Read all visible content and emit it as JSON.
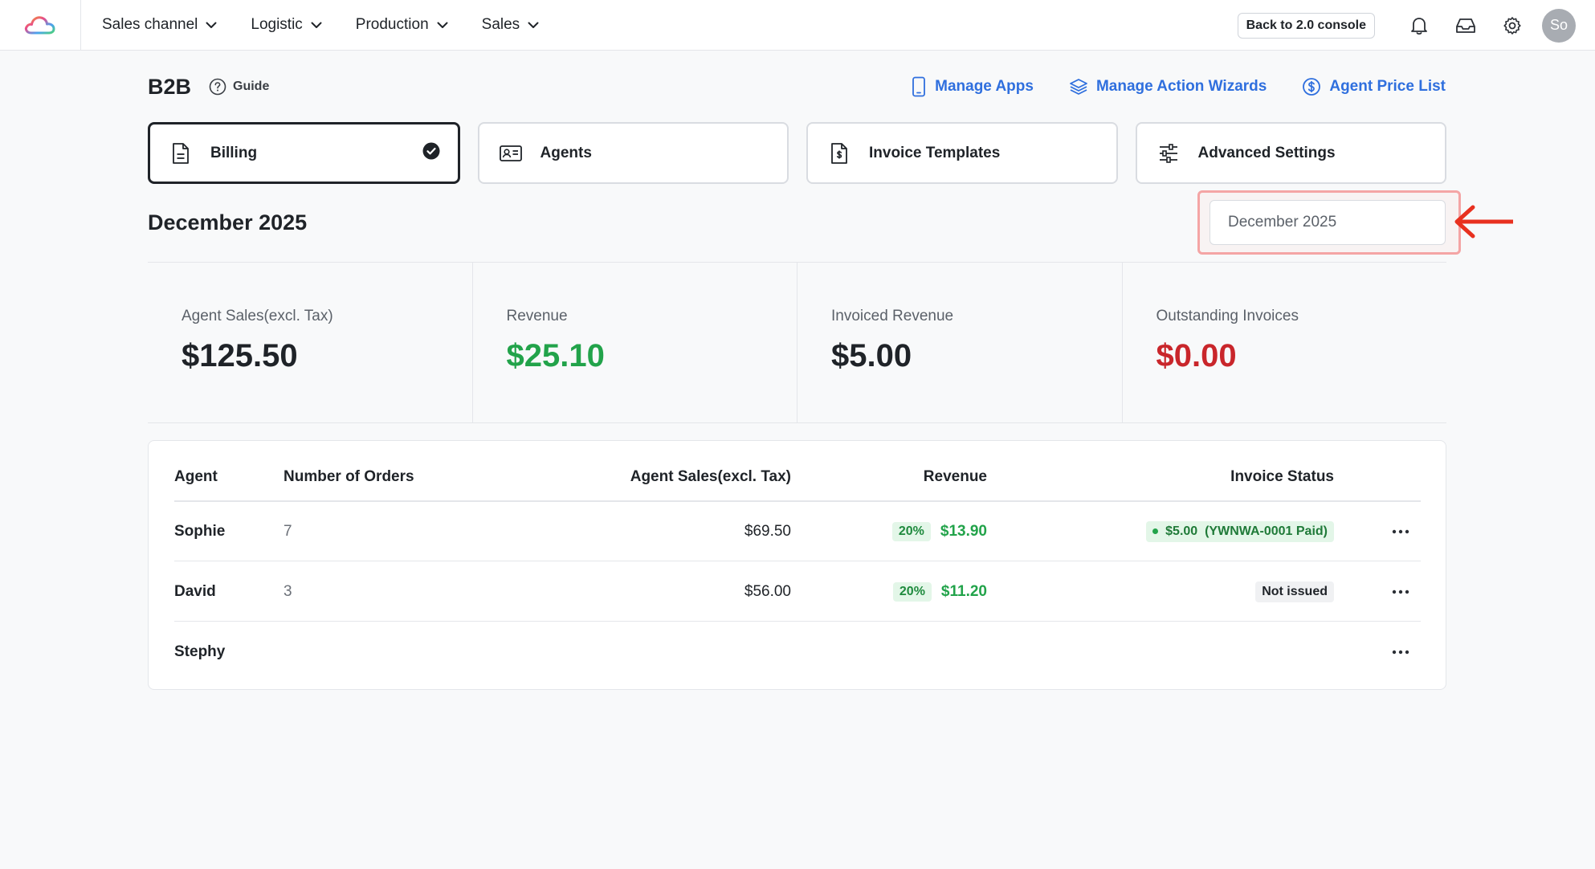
{
  "nav": {
    "items": [
      {
        "label": "Sales channel"
      },
      {
        "label": "Logistic"
      },
      {
        "label": "Production"
      },
      {
        "label": "Sales"
      }
    ],
    "back_button": "Back to 2.0 console",
    "avatar_initials": "So"
  },
  "header": {
    "title": "B2B",
    "guide": "Guide",
    "links": [
      {
        "label": "Manage Apps",
        "icon": "phone-icon"
      },
      {
        "label": "Manage Action Wizards",
        "icon": "layers-icon"
      },
      {
        "label": "Agent Price List",
        "icon": "dollar-circle-icon"
      }
    ]
  },
  "tabs": [
    {
      "label": "Billing",
      "icon": "document-icon",
      "active": true
    },
    {
      "label": "Agents",
      "icon": "id-card-icon",
      "active": false
    },
    {
      "label": "Invoice Templates",
      "icon": "invoice-dollar-icon",
      "active": false
    },
    {
      "label": "Advanced Settings",
      "icon": "sliders-icon",
      "active": false
    }
  ],
  "period": {
    "title": "December 2025",
    "picker_value": "December 2025"
  },
  "stats": [
    {
      "label": "Agent Sales(excl. Tax)",
      "value": "$125.50",
      "color": "#1f2328"
    },
    {
      "label": "Revenue",
      "value": "$25.10",
      "color": "#22a34a"
    },
    {
      "label": "Invoiced Revenue",
      "value": "$5.00",
      "color": "#1f2328"
    },
    {
      "label": "Outstanding Invoices",
      "value": "$0.00",
      "color": "#c9262b"
    }
  ],
  "table": {
    "columns": [
      "Agent",
      "Number of Orders",
      "Agent Sales(excl. Tax)",
      "Revenue",
      "Invoice Status"
    ],
    "rows": [
      {
        "agent": "Sophie",
        "orders": "7",
        "sales": "$69.50",
        "pct": "20%",
        "revenue": "$13.90",
        "status": "$5.00  (YWNWA-0001 Paid)",
        "status_type": "paid"
      },
      {
        "agent": "David",
        "orders": "3",
        "sales": "$56.00",
        "pct": "20%",
        "revenue": "$11.20",
        "status": "Not issued",
        "status_type": "not-issued"
      },
      {
        "agent": "Stephy",
        "orders": "",
        "sales": "",
        "pct": "",
        "revenue": "",
        "status": "",
        "status_type": ""
      }
    ]
  },
  "colors": {
    "link_blue": "#2f6fde",
    "green": "#22a34a",
    "red": "#c9262b",
    "highlight": "#f4a5a5",
    "arrow": "#e8311f"
  }
}
